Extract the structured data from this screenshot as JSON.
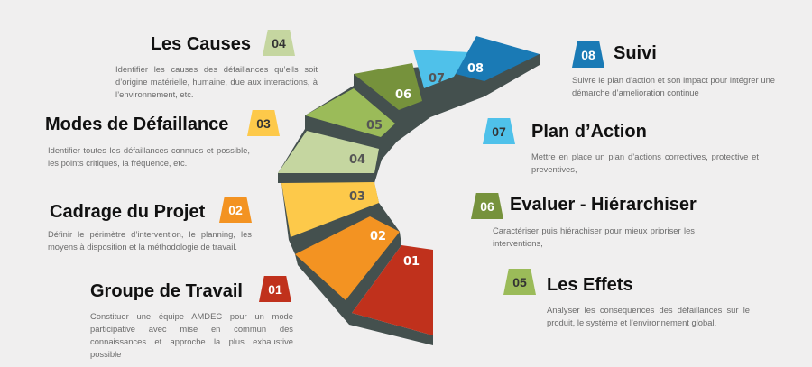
{
  "colors": {
    "step01": "#c0311c",
    "step02": "#f39322",
    "step03": "#fdc94a",
    "step04": "#c5d6a0",
    "step05": "#9bbb59",
    "step06": "#76923c",
    "step07": "#4fc1ea",
    "step08": "#1a7ab5",
    "stair_side": "#44504e",
    "background": "#f0efef"
  },
  "stairs": [
    "01",
    "02",
    "03",
    "04",
    "05",
    "06",
    "07",
    "08"
  ],
  "steps": [
    {
      "num": "01",
      "title": "Groupe de Travail",
      "desc": "Constituer une équipe AMDEC pour un mode participative avec mise en commun des connaissances et approche la plus exhaustive possible"
    },
    {
      "num": "02",
      "title": "Cadrage du Projet",
      "desc": "Définir le périmètre d’intervention, le planning, les moyens à disposition et la méthodologie de travail."
    },
    {
      "num": "03",
      "title": "Modes de Défaillance",
      "desc": "Identifier toutes les défaillances connues et possible, les points critiques, la fréquence, etc."
    },
    {
      "num": "04",
      "title": "Les Causes",
      "desc": "Identifier les causes des défaillances qu’ells soit d’origine matérielle, humaine, due aux interactions, à l’environnement, etc."
    },
    {
      "num": "05",
      "title": "Les Effets",
      "desc": "Analyser les consequences des défaillances sur le produit, le système et l’environnement global,"
    },
    {
      "num": "06",
      "title": "Evaluer - Hiérarchiser",
      "desc": "Caractériser puis hiérachiser pour mieux prioriser les interventions,"
    },
    {
      "num": "07",
      "title": "Plan d’Action",
      "desc": "Mettre en place un plan d’actions correctives, protective et preventives,"
    },
    {
      "num": "08",
      "title": "Suivi",
      "desc": "Suivre le plan d’action et son impact pour intégrer une démarche d’amelioration continue"
    }
  ]
}
